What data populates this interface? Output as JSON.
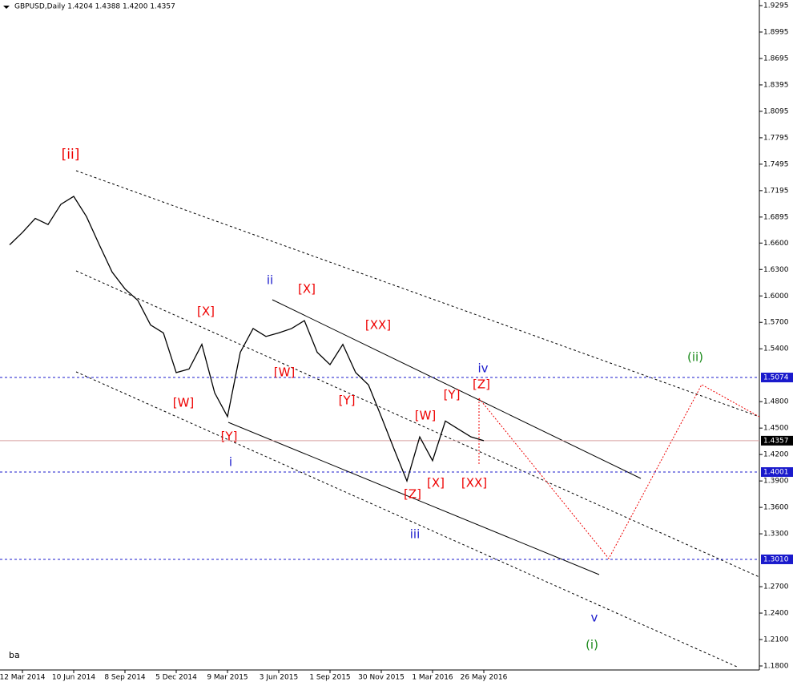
{
  "chart_data": {
    "type": "line",
    "title": "GBPUSD,Daily  1.4204 1.4388 1.4200 1.4357",
    "categories": [
      null,
      "12 Mar 2014",
      null,
      null,
      null,
      "10 Jun 2014",
      null,
      null,
      null,
      "8 Sep 2014",
      null,
      null,
      null,
      "5 Dec 2014",
      null,
      null,
      null,
      "9 Mar 2015",
      null,
      null,
      null,
      "3 Jun 2015",
      null,
      null,
      null,
      "1 Sep 2015",
      null,
      null,
      null,
      "30 Nov 2015",
      null,
      null,
      null,
      "1 Mar 2016",
      null,
      null,
      null,
      "26 May 2016"
    ],
    "series": [
      {
        "name": "GBPUSD",
        "color": "#000000",
        "values": [
          1.658,
          1.672,
          1.688,
          1.681,
          1.704,
          1.713,
          1.69,
          1.658,
          1.627,
          1.608,
          1.595,
          1.567,
          1.558,
          1.513,
          1.517,
          1.545,
          1.49,
          1.463,
          1.536,
          1.563,
          1.554,
          1.558,
          1.563,
          1.572,
          1.536,
          1.522,
          1.545,
          1.513,
          1.499,
          1.463,
          1.426,
          1.39,
          1.44,
          1.413,
          1.458,
          1.449,
          1.44,
          1.4357
        ]
      }
    ],
    "ylim": [
      1.18,
      1.9295
    ],
    "yticks": [
      1.9295,
      1.8995,
      1.8695,
      1.8395,
      1.8095,
      1.7795,
      1.7495,
      1.7195,
      1.6895,
      {
        "value": 1.66,
        "label": "1.6600"
      },
      {
        "value": 1.63,
        "label": "1.6300"
      },
      {
        "value": 1.6,
        "label": "1.6000"
      },
      {
        "value": 1.57,
        "label": "1.5700"
      },
      {
        "value": 1.54,
        "label": "1.5400"
      },
      {
        "value": 1.48,
        "label": "1.4800"
      },
      {
        "value": 1.45,
        "label": "1.4500"
      },
      {
        "value": 1.42,
        "label": "1.4200"
      },
      {
        "value": 1.39,
        "label": "1.3900"
      },
      {
        "value": 1.36,
        "label": "1.3600"
      },
      {
        "value": 1.33,
        "label": "1.3300"
      },
      {
        "value": 1.27,
        "label": "1.2700"
      },
      {
        "value": 1.24,
        "label": "1.2400"
      },
      {
        "value": 1.21,
        "label": "1.2100"
      },
      {
        "value": 1.18,
        "label": "1.1800"
      }
    ],
    "levels": [
      1.5074,
      1.4001,
      {
        "value": 1.301,
        "label": "1.3010"
      }
    ],
    "current_price": 1.4357,
    "annotations": [
      "[ii]",
      "ii",
      "[X]",
      "[X]",
      "[XX]",
      "iv",
      "[W]",
      "[Z]",
      "[Y]",
      "[Y]",
      "[W]",
      "[W]",
      "[Y]",
      "i",
      "[X]",
      "[XX]",
      "[Z]",
      "iii",
      "v",
      "(i)",
      "(ii)",
      "ba"
    ]
  }
}
